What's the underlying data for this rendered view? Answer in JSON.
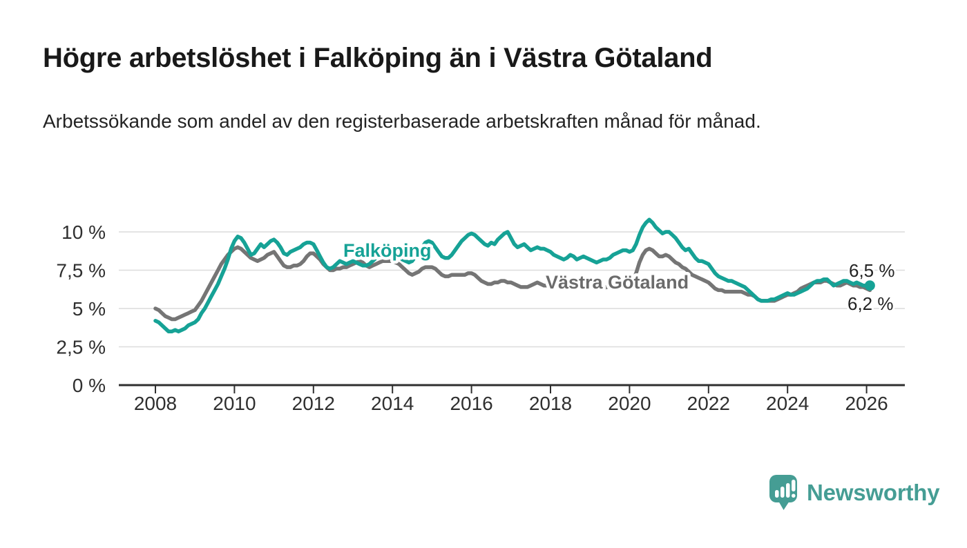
{
  "header": {
    "title": "Högre arbetslöshet i Falköping än i Västra Götaland",
    "subtitle": "Arbetssökande som andel av den registerbaserade arbetskraften månad för månad."
  },
  "logo": {
    "text": "Newsworthy",
    "color": "#459d94"
  },
  "chart_data": {
    "type": "line",
    "unit": "%",
    "x_start": "2008-01",
    "x_end": "2026-02",
    "x_resolution": "monthly",
    "grid": "horizontal",
    "ylim": [
      0,
      11.5
    ],
    "y_axis": {
      "ticks": [
        {
          "value": 0,
          "label": "0 %"
        },
        {
          "value": 2.5,
          "label": "2,5 %"
        },
        {
          "value": 5,
          "label": "5 %"
        },
        {
          "value": 7.5,
          "label": "7,5 %"
        },
        {
          "value": 10,
          "label": "10 %"
        }
      ]
    },
    "x_axis": {
      "ticks": [
        {
          "year": 2008,
          "label": "2008"
        },
        {
          "year": 2010,
          "label": "2010"
        },
        {
          "year": 2012,
          "label": "2012"
        },
        {
          "year": 2014,
          "label": "2014"
        },
        {
          "year": 2016,
          "label": "2016"
        },
        {
          "year": 2018,
          "label": "2018"
        },
        {
          "year": 2020,
          "label": "2020"
        },
        {
          "year": 2022,
          "label": "2022"
        },
        {
          "year": 2024,
          "label": "2024"
        },
        {
          "year": 2026,
          "label": "2026"
        }
      ]
    },
    "series": [
      {
        "id": "falkoping",
        "name": "Falköping",
        "color": "#16a296",
        "end_label": "6,5 %",
        "values": [
          4.2,
          4.1,
          3.9,
          3.7,
          3.5,
          3.5,
          3.6,
          3.5,
          3.6,
          3.7,
          3.9,
          4.0,
          4.1,
          4.3,
          4.7,
          5.0,
          5.4,
          5.8,
          6.2,
          6.6,
          7.1,
          7.6,
          8.2,
          8.9,
          9.4,
          9.7,
          9.6,
          9.3,
          8.9,
          8.5,
          8.6,
          8.9,
          9.2,
          9.0,
          9.2,
          9.4,
          9.5,
          9.3,
          9.0,
          8.6,
          8.5,
          8.7,
          8.8,
          8.9,
          9.0,
          9.2,
          9.3,
          9.3,
          9.2,
          8.8,
          8.4,
          8.0,
          7.7,
          7.6,
          7.7,
          7.9,
          8.1,
          8.0,
          7.9,
          8.0,
          8.1,
          8.0,
          7.9,
          7.8,
          7.8,
          7.9,
          8.1,
          8.3,
          8.4,
          8.5,
          8.6,
          8.7,
          8.7,
          8.6,
          8.4,
          8.2,
          8.1,
          8.0,
          8.1,
          8.4,
          8.7,
          9.0,
          9.3,
          9.4,
          9.3,
          9.0,
          8.7,
          8.4,
          8.3,
          8.3,
          8.5,
          8.8,
          9.1,
          9.4,
          9.6,
          9.8,
          9.9,
          9.8,
          9.6,
          9.4,
          9.2,
          9.1,
          9.3,
          9.2,
          9.5,
          9.7,
          9.9,
          10.0,
          9.6,
          9.2,
          9.0,
          9.1,
          9.2,
          9.0,
          8.8,
          8.9,
          9.0,
          8.9,
          8.9,
          8.8,
          8.7,
          8.5,
          8.4,
          8.3,
          8.2,
          8.3,
          8.5,
          8.4,
          8.2,
          8.3,
          8.4,
          8.3,
          8.2,
          8.1,
          8.0,
          8.1,
          8.2,
          8.2,
          8.3,
          8.5,
          8.6,
          8.7,
          8.8,
          8.8,
          8.7,
          8.8,
          9.2,
          9.8,
          10.3,
          10.6,
          10.8,
          10.6,
          10.3,
          10.1,
          9.9,
          10.0,
          10.0,
          9.8,
          9.6,
          9.3,
          9.0,
          8.8,
          8.9,
          8.6,
          8.3,
          8.1,
          8.1,
          8.0,
          7.9,
          7.6,
          7.3,
          7.1,
          7.0,
          6.9,
          6.8,
          6.8,
          6.7,
          6.6,
          6.5,
          6.4,
          6.2,
          6.0,
          5.8,
          5.6,
          5.5,
          5.5,
          5.5,
          5.6,
          5.6,
          5.7,
          5.8,
          5.9,
          6.0,
          5.9,
          5.9,
          6.0,
          6.1,
          6.2,
          6.3,
          6.5,
          6.7,
          6.8,
          6.8,
          6.9,
          6.9,
          6.7,
          6.5,
          6.6,
          6.7,
          6.8,
          6.8,
          6.7,
          6.6,
          6.7,
          6.6,
          6.5,
          6.5,
          6.5
        ]
      },
      {
        "id": "vastra-gotaland",
        "name": "Västra Götaland",
        "color": "#757575",
        "label_color": "#6b6b6b",
        "end_label": "6,2 %",
        "values": [
          5.0,
          4.9,
          4.7,
          4.5,
          4.4,
          4.3,
          4.3,
          4.4,
          4.5,
          4.6,
          4.7,
          4.8,
          4.9,
          5.2,
          5.5,
          5.9,
          6.3,
          6.7,
          7.1,
          7.5,
          7.9,
          8.2,
          8.5,
          8.7,
          8.9,
          9.0,
          8.9,
          8.7,
          8.5,
          8.3,
          8.2,
          8.1,
          8.2,
          8.3,
          8.5,
          8.6,
          8.7,
          8.4,
          8.1,
          7.8,
          7.7,
          7.7,
          7.8,
          7.8,
          7.9,
          8.1,
          8.4,
          8.6,
          8.6,
          8.4,
          8.2,
          7.9,
          7.7,
          7.5,
          7.5,
          7.6,
          7.6,
          7.7,
          7.7,
          7.8,
          7.9,
          8.0,
          8.1,
          8.0,
          7.8,
          7.7,
          7.8,
          7.9,
          8.0,
          8.1,
          8.1,
          8.1,
          8.1,
          8.0,
          7.9,
          7.7,
          7.5,
          7.3,
          7.2,
          7.3,
          7.4,
          7.6,
          7.7,
          7.7,
          7.7,
          7.6,
          7.4,
          7.2,
          7.1,
          7.1,
          7.2,
          7.2,
          7.2,
          7.2,
          7.2,
          7.3,
          7.3,
          7.2,
          7.0,
          6.8,
          6.7,
          6.6,
          6.6,
          6.7,
          6.7,
          6.8,
          6.8,
          6.7,
          6.7,
          6.6,
          6.5,
          6.4,
          6.4,
          6.4,
          6.5,
          6.6,
          6.7,
          6.6,
          6.5,
          6.5,
          6.5,
          6.5,
          6.4,
          6.4,
          6.4,
          6.4,
          6.5,
          6.5,
          6.4,
          6.4,
          6.4,
          6.4,
          6.4,
          6.4,
          6.3,
          6.3,
          6.3,
          6.4,
          6.4,
          6.5,
          6.5,
          6.4,
          6.4,
          6.5,
          6.6,
          6.8,
          7.3,
          8.0,
          8.5,
          8.8,
          8.9,
          8.8,
          8.6,
          8.4,
          8.4,
          8.5,
          8.4,
          8.2,
          8.0,
          7.9,
          7.7,
          7.6,
          7.4,
          7.2,
          7.1,
          7.0,
          6.9,
          6.8,
          6.7,
          6.5,
          6.3,
          6.2,
          6.2,
          6.1,
          6.1,
          6.1,
          6.1,
          6.1,
          6.1,
          6.0,
          5.9,
          5.9,
          5.8,
          5.6,
          5.5,
          5.5,
          5.5,
          5.5,
          5.5,
          5.6,
          5.7,
          5.8,
          5.9,
          5.9,
          6.0,
          6.1,
          6.3,
          6.4,
          6.5,
          6.6,
          6.7,
          6.7,
          6.7,
          6.8,
          6.8,
          6.7,
          6.6,
          6.5,
          6.5,
          6.6,
          6.7,
          6.6,
          6.5,
          6.5,
          6.4,
          6.4,
          6.3,
          6.2
        ]
      }
    ]
  }
}
